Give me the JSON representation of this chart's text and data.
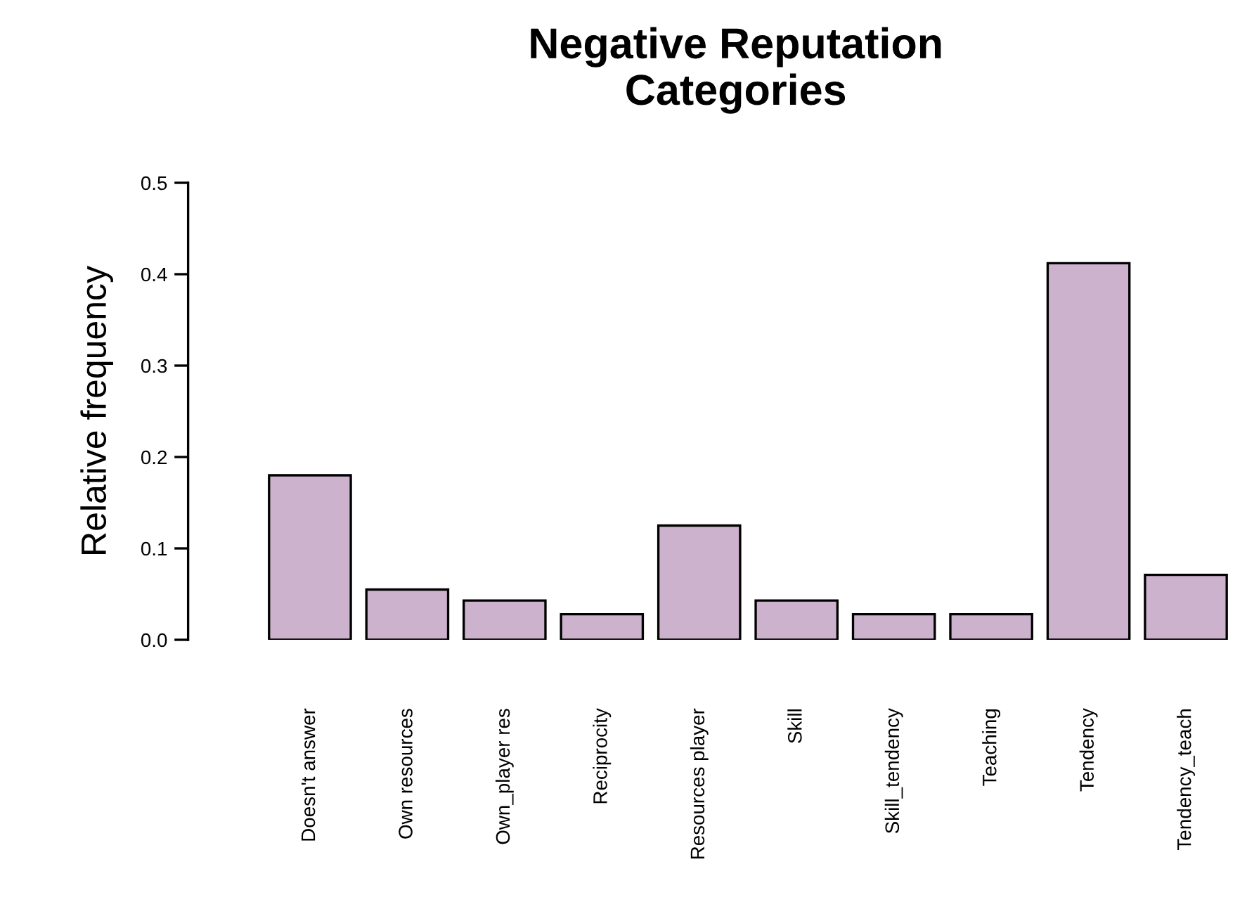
{
  "chart_data": {
    "type": "bar",
    "title": "Negative Reputation\nCategories",
    "ylabel": "Relative frequency",
    "categories": [
      "Doesn't answer",
      "Own resources",
      "Own_player res",
      "Reciprocity",
      "Resources player",
      "Skill",
      "Skill_tendency",
      "Teaching",
      "Tendency",
      "Tendency_teach"
    ],
    "values": [
      0.18,
      0.055,
      0.043,
      0.028,
      0.125,
      0.043,
      0.028,
      0.028,
      0.412,
      0.071
    ],
    "color": "#ccb2cc",
    "ylim": [
      0,
      0.5
    ],
    "yticks": [
      {
        "value": 0,
        "label": "0.0"
      },
      0.1,
      0.2,
      0.3,
      0.4,
      0.5
    ],
    "grid": false
  }
}
